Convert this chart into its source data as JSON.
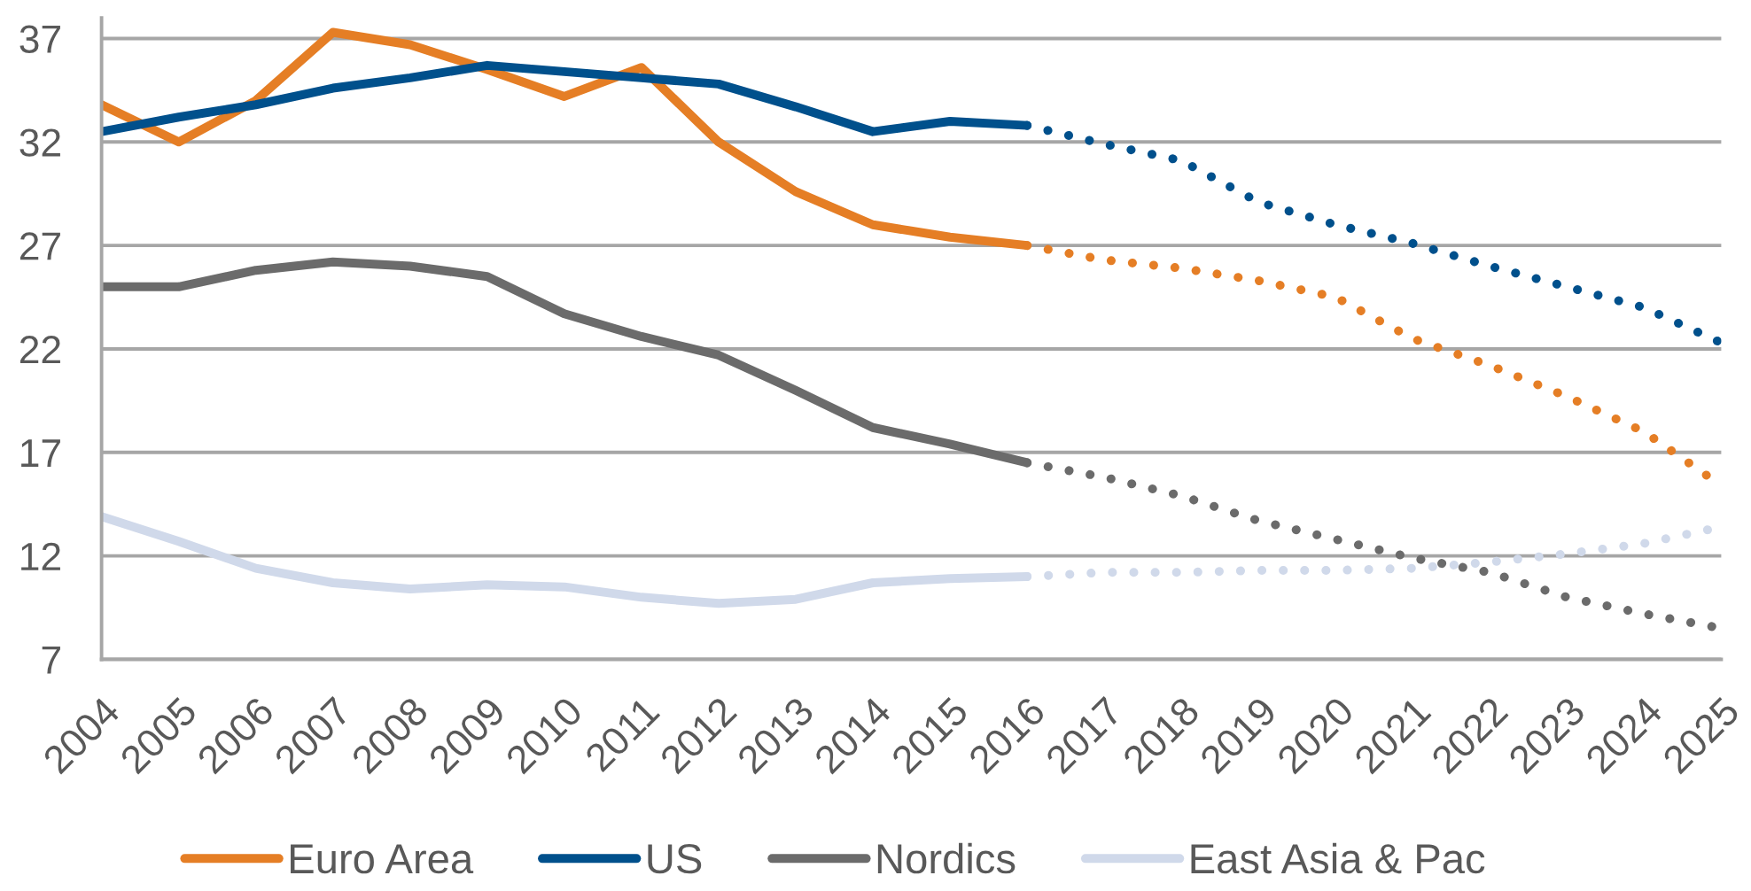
{
  "chart_data": {
    "type": "line",
    "categories": [
      "2004",
      "2005",
      "2006",
      "2007",
      "2008",
      "2009",
      "2010",
      "2011",
      "2012",
      "2013",
      "2014",
      "2015",
      "2016",
      "2017",
      "2018",
      "2019",
      "2020",
      "2021",
      "2022",
      "2023",
      "2024",
      "2025"
    ],
    "ylim": [
      7,
      38
    ],
    "yticks": [
      7,
      12,
      17,
      22,
      27,
      32,
      37
    ],
    "grid": "y",
    "legend": "bottom",
    "series": [
      {
        "name": "Euro Area",
        "color": "#e57e25",
        "line_style": "solid",
        "values": [
          33.8,
          32.0,
          34.0,
          37.3,
          36.7,
          35.5,
          34.2,
          35.6,
          32.0,
          29.6,
          28.0,
          27.4,
          27.0,
          null,
          null,
          null,
          null,
          null,
          null,
          null,
          null,
          null
        ]
      },
      {
        "name": "US",
        "color": "#00508c",
        "line_style": "solid",
        "values": [
          32.5,
          33.2,
          33.8,
          34.6,
          35.1,
          35.7,
          35.4,
          35.1,
          34.8,
          33.7,
          32.5,
          33.0,
          32.8,
          null,
          null,
          null,
          null,
          null,
          null,
          null,
          null,
          null
        ]
      },
      {
        "name": "Nordics",
        "color": "#6b6b6b",
        "line_style": "solid",
        "values": [
          25.0,
          25.0,
          25.8,
          26.2,
          26.0,
          25.5,
          23.7,
          22.6,
          21.7,
          20.0,
          18.2,
          17.4,
          16.5,
          null,
          null,
          null,
          null,
          null,
          null,
          null,
          null,
          null
        ]
      },
      {
        "name": "East Asia & Pac",
        "color": "#d0d9ea",
        "line_style": "solid",
        "values": [
          13.9,
          12.7,
          11.4,
          10.7,
          10.4,
          10.6,
          10.5,
          10.0,
          9.7,
          9.9,
          10.7,
          10.9,
          11.0,
          null,
          null,
          null,
          null,
          null,
          null,
          null,
          null,
          null
        ]
      },
      {
        "color": "#e57e25",
        "line_style": "dotted",
        "values": [
          null,
          null,
          null,
          null,
          null,
          null,
          null,
          null,
          null,
          null,
          null,
          null,
          27.0,
          26.3,
          25.9,
          25.3,
          24.5,
          22.5,
          21.2,
          19.7,
          18.0,
          15.4
        ]
      },
      {
        "color": "#00508c",
        "line_style": "dotted",
        "values": [
          null,
          null,
          null,
          null,
          null,
          null,
          null,
          null,
          null,
          null,
          null,
          null,
          32.8,
          31.9,
          31.1,
          29.1,
          28.0,
          27.1,
          26.0,
          25.0,
          24.0,
          22.3
        ]
      },
      {
        "color": "#6b6b6b",
        "line_style": "dotted",
        "values": [
          null,
          null,
          null,
          null,
          null,
          null,
          null,
          null,
          null,
          null,
          null,
          null,
          16.5,
          15.8,
          14.9,
          13.7,
          12.8,
          11.9,
          11.2,
          10.0,
          9.2,
          8.5
        ]
      },
      {
        "color": "#d0d9ea",
        "line_style": "dotted",
        "values": [
          null,
          null,
          null,
          null,
          null,
          null,
          null,
          null,
          null,
          null,
          null,
          null,
          11.0,
          11.2,
          11.2,
          11.3,
          11.3,
          11.4,
          11.7,
          12.1,
          12.6,
          13.4
        ]
      }
    ]
  }
}
